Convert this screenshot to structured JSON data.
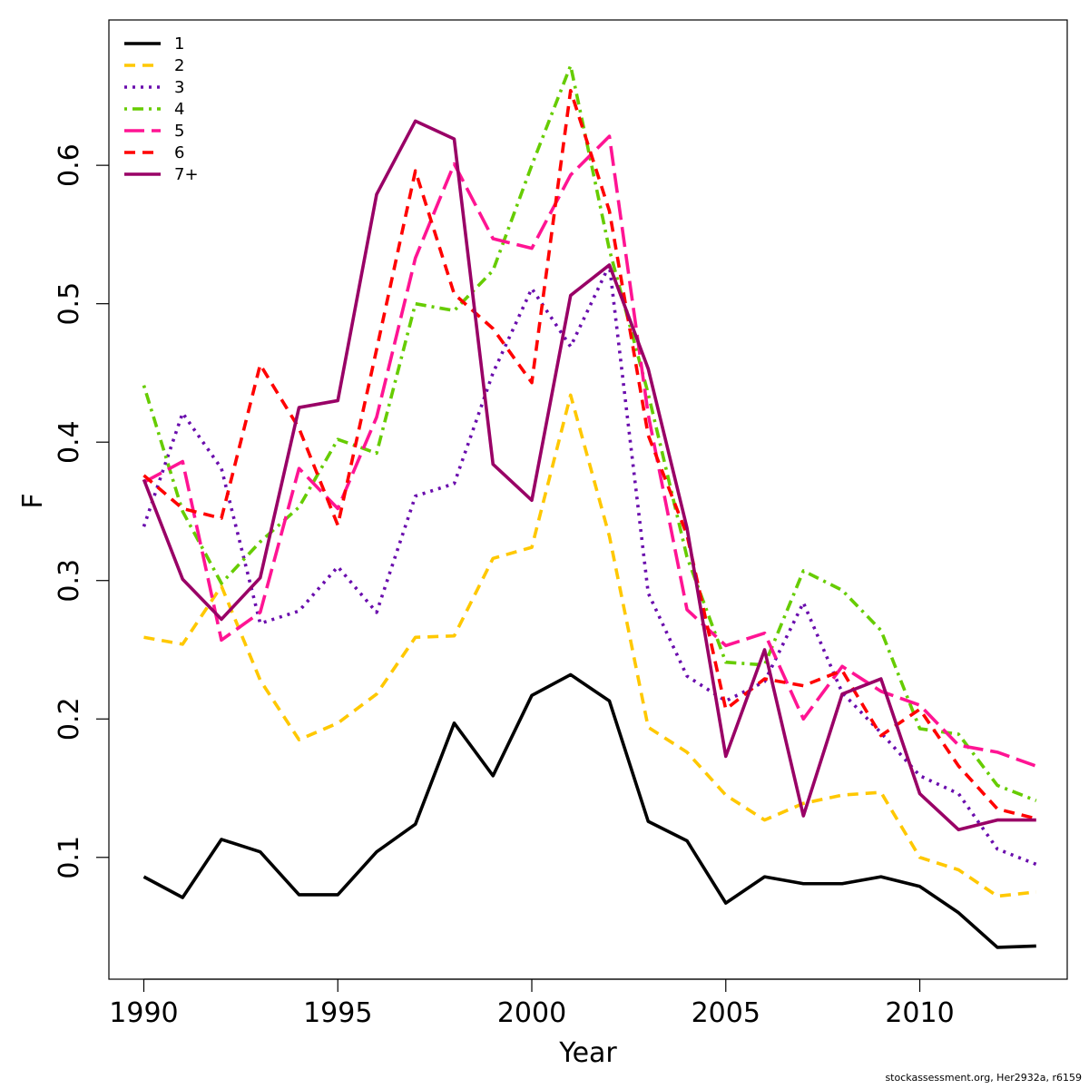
{
  "chart_data": {
    "type": "line",
    "xlabel": "Year",
    "ylabel": "F",
    "xlim": [
      1989.1,
      2013.8
    ],
    "ylim": [
      0.012,
      0.705
    ],
    "x_ticks": [
      1990,
      1995,
      2000,
      2005,
      2010
    ],
    "y_ticks": [
      0.1,
      0.2,
      0.3,
      0.4,
      0.5,
      0.6
    ],
    "grid": false,
    "legend_position": "top-left",
    "x": [
      1990,
      1991,
      1992,
      1993,
      1994,
      1995,
      1996,
      1997,
      1998,
      1999,
      2000,
      2001,
      2002,
      2003,
      2004,
      2005,
      2006,
      2007,
      2008,
      2009,
      2010,
      2011,
      2012,
      2013
    ],
    "series": [
      {
        "name": "1",
        "color": "#000000",
        "dash": "solid",
        "values": [
          0.086,
          0.071,
          0.113,
          0.104,
          0.073,
          0.073,
          0.104,
          0.124,
          0.197,
          0.159,
          0.217,
          0.232,
          0.213,
          0.126,
          0.112,
          0.067,
          0.086,
          0.081,
          0.081,
          0.086,
          0.079,
          0.06,
          0.035,
          0.036
        ]
      },
      {
        "name": "2",
        "color": "#FFC800",
        "dash": "dashed",
        "values": [
          0.259,
          0.254,
          0.296,
          0.228,
          0.185,
          0.197,
          0.218,
          0.259,
          0.26,
          0.316,
          0.324,
          0.434,
          0.332,
          0.194,
          0.176,
          0.145,
          0.127,
          0.139,
          0.145,
          0.147,
          0.1,
          0.091,
          0.072,
          0.075
        ]
      },
      {
        "name": "3",
        "color": "#6A0DAD",
        "dash": "dotted",
        "values": [
          0.339,
          0.421,
          0.381,
          0.269,
          0.278,
          0.31,
          0.277,
          0.361,
          0.37,
          0.45,
          0.511,
          0.469,
          0.528,
          0.291,
          0.231,
          0.213,
          0.227,
          0.284,
          0.219,
          0.19,
          0.159,
          0.146,
          0.106,
          0.095
        ]
      },
      {
        "name": "4",
        "color": "#66CC00",
        "dash": "dotdash",
        "values": [
          0.441,
          0.35,
          0.298,
          0.328,
          0.353,
          0.402,
          0.392,
          0.5,
          0.495,
          0.524,
          0.6,
          0.672,
          0.539,
          0.435,
          0.317,
          0.241,
          0.239,
          0.307,
          0.293,
          0.264,
          0.193,
          0.189,
          0.152,
          0.141
        ]
      },
      {
        "name": "5",
        "color": "#FF1493",
        "dash": "longdash",
        "values": [
          0.371,
          0.386,
          0.257,
          0.277,
          0.381,
          0.352,
          0.418,
          0.533,
          0.601,
          0.547,
          0.54,
          0.593,
          0.621,
          0.42,
          0.279,
          0.253,
          0.262,
          0.2,
          0.238,
          0.22,
          0.21,
          0.181,
          0.176,
          0.166
        ]
      },
      {
        "name": "6",
        "color": "#FF0000",
        "dash": "dashed",
        "values": [
          0.376,
          0.352,
          0.345,
          0.456,
          0.41,
          0.34,
          0.467,
          0.596,
          0.507,
          0.482,
          0.443,
          0.654,
          0.567,
          0.405,
          0.333,
          0.207,
          0.229,
          0.224,
          0.235,
          0.188,
          0.207,
          0.166,
          0.135,
          0.128
        ]
      },
      {
        "name": "7+",
        "color": "#990066",
        "dash": "solid",
        "values": [
          0.373,
          0.301,
          0.272,
          0.302,
          0.425,
          0.43,
          0.579,
          0.632,
          0.619,
          0.384,
          0.358,
          0.506,
          0.528,
          0.453,
          0.338,
          0.173,
          0.25,
          0.13,
          0.218,
          0.229,
          0.146,
          0.12,
          0.127,
          0.127
        ]
      }
    ]
  },
  "credit": "stockassessment.org, Her2932a, r6159"
}
